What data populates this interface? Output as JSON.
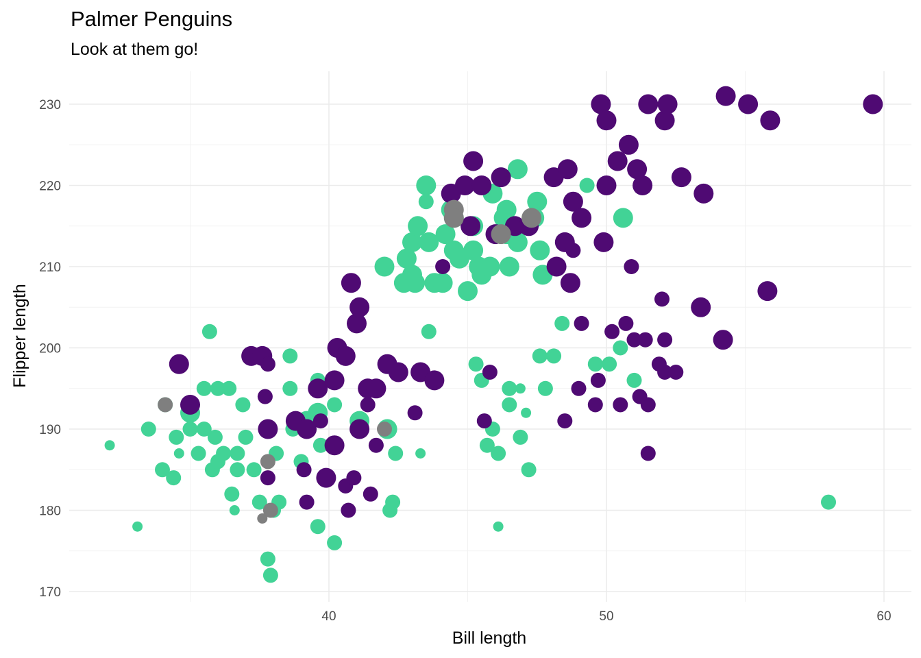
{
  "chart_data": {
    "type": "scatter",
    "title": "Palmer Penguins",
    "subtitle": "Look at them go!",
    "xlabel": "Bill length",
    "ylabel": "Flipper length",
    "xlim": [
      31.3,
      61.0
    ],
    "ylim": [
      169.5,
      233.5
    ],
    "x_ticks": [
      40,
      50,
      60
    ],
    "y_ticks": [
      170,
      180,
      190,
      200,
      210,
      220,
      230
    ],
    "grid": true,
    "legend": "none",
    "colors": {
      "purple": "#4f0a73",
      "green": "#42d396",
      "gray": "#7f7f7f"
    },
    "points": [
      [
        32.1,
        188,
        "g",
        1
      ],
      [
        33.1,
        178,
        "g",
        1
      ],
      [
        33.5,
        190,
        "g",
        2
      ],
      [
        34.1,
        193,
        "g",
        2
      ],
      [
        34.0,
        185,
        "g",
        2
      ],
      [
        34.4,
        184,
        "g",
        2
      ],
      [
        34.5,
        189,
        "g",
        2
      ],
      [
        34.6,
        187,
        "g",
        1
      ],
      [
        34.6,
        198,
        "p",
        3
      ],
      [
        35.0,
        193,
        "p",
        3
      ],
      [
        35.0,
        192,
        "g",
        3
      ],
      [
        35.0,
        190,
        "g",
        2
      ],
      [
        35.3,
        187,
        "g",
        2
      ],
      [
        35.5,
        195,
        "g",
        2
      ],
      [
        35.5,
        190,
        "g",
        2
      ],
      [
        35.7,
        202,
        "g",
        2
      ],
      [
        35.8,
        185,
        "g",
        2
      ],
      [
        35.9,
        189,
        "g",
        2
      ],
      [
        36.0,
        186,
        "g",
        2
      ],
      [
        36.0,
        195,
        "g",
        2
      ],
      [
        36.2,
        187,
        "g",
        2
      ],
      [
        36.4,
        195,
        "g",
        2
      ],
      [
        36.5,
        182,
        "g",
        2
      ],
      [
        36.6,
        180,
        "g",
        1
      ],
      [
        36.7,
        185,
        "g",
        2
      ],
      [
        36.7,
        187,
        "g",
        2
      ],
      [
        36.9,
        193,
        "g",
        2
      ],
      [
        37.0,
        189,
        "g",
        2
      ],
      [
        37.2,
        199,
        "p",
        3
      ],
      [
        37.3,
        185,
        "g",
        2
      ],
      [
        37.5,
        181,
        "g",
        2
      ],
      [
        37.6,
        199,
        "p",
        3
      ],
      [
        37.7,
        194,
        "p",
        2
      ],
      [
        37.8,
        198,
        "p",
        2
      ],
      [
        37.8,
        174,
        "g",
        2
      ],
      [
        37.9,
        172,
        "g",
        2
      ],
      [
        37.8,
        190,
        "p",
        3
      ],
      [
        37.8,
        184,
        "p",
        2
      ],
      [
        38.0,
        180,
        "g",
        2
      ],
      [
        38.1,
        187,
        "g",
        2
      ],
      [
        38.2,
        181,
        "g",
        2
      ],
      [
        38.6,
        199,
        "g",
        2
      ],
      [
        38.6,
        195,
        "g",
        2
      ],
      [
        38.7,
        190,
        "g",
        2
      ],
      [
        38.8,
        191,
        "p",
        3
      ],
      [
        39.0,
        186,
        "g",
        2
      ],
      [
        39.1,
        185,
        "p",
        2
      ],
      [
        39.2,
        181,
        "p",
        2
      ],
      [
        39.2,
        191,
        "g",
        3
      ],
      [
        39.2,
        190,
        "p",
        3
      ],
      [
        39.6,
        192,
        "g",
        3
      ],
      [
        39.6,
        196,
        "g",
        2
      ],
      [
        39.6,
        195,
        "p",
        3
      ],
      [
        39.7,
        188,
        "g",
        2
      ],
      [
        39.7,
        191,
        "p",
        2
      ],
      [
        39.6,
        178,
        "g",
        2
      ],
      [
        39.9,
        184,
        "p",
        3
      ],
      [
        40.2,
        188,
        "p",
        3
      ],
      [
        40.2,
        193,
        "g",
        2
      ],
      [
        40.2,
        176,
        "g",
        2
      ],
      [
        40.2,
        196,
        "p",
        3
      ],
      [
        40.3,
        200,
        "p",
        3
      ],
      [
        40.6,
        183,
        "p",
        2
      ],
      [
        40.6,
        199,
        "p",
        3
      ],
      [
        40.7,
        180,
        "p",
        2
      ],
      [
        40.8,
        208,
        "p",
        3
      ],
      [
        40.9,
        184,
        "p",
        2
      ],
      [
        41.0,
        203,
        "p",
        3
      ],
      [
        41.1,
        205,
        "p",
        3
      ],
      [
        41.1,
        191,
        "g",
        3
      ],
      [
        41.1,
        190,
        "p",
        3
      ],
      [
        41.4,
        195,
        "p",
        3
      ],
      [
        41.4,
        193,
        "p",
        2
      ],
      [
        41.5,
        182,
        "p",
        2
      ],
      [
        41.7,
        188,
        "p",
        2
      ],
      [
        41.7,
        195,
        "p",
        3
      ],
      [
        42.0,
        210,
        "g",
        3
      ],
      [
        42.1,
        198,
        "p",
        3
      ],
      [
        42.2,
        180,
        "g",
        2
      ],
      [
        42.1,
        190,
        "g",
        3
      ],
      [
        42.3,
        181,
        "g",
        2
      ],
      [
        42.4,
        187,
        "g",
        2
      ],
      [
        42.5,
        197,
        "p",
        3
      ],
      [
        42.7,
        208,
        "g",
        3
      ],
      [
        42.8,
        211,
        "g",
        3
      ],
      [
        43.0,
        209,
        "g",
        3
      ],
      [
        43.0,
        213,
        "g",
        3
      ],
      [
        43.1,
        208,
        "g",
        3
      ],
      [
        43.1,
        192,
        "p",
        2
      ],
      [
        43.2,
        215,
        "g",
        3
      ],
      [
        43.3,
        197,
        "p",
        3
      ],
      [
        43.3,
        187,
        "g",
        1
      ],
      [
        43.5,
        218,
        "g",
        2
      ],
      [
        43.5,
        220,
        "g",
        3
      ],
      [
        43.6,
        213,
        "g",
        3
      ],
      [
        43.6,
        202,
        "g",
        2
      ],
      [
        43.8,
        196,
        "p",
        3
      ],
      [
        43.8,
        208,
        "g",
        3
      ],
      [
        44.1,
        210,
        "p",
        2
      ],
      [
        44.1,
        208,
        "g",
        3
      ],
      [
        44.2,
        214,
        "g",
        3
      ],
      [
        44.4,
        219,
        "p",
        3
      ],
      [
        44.4,
        217,
        "g",
        3
      ],
      [
        44.5,
        216,
        "g",
        3
      ],
      [
        44.5,
        212,
        "g",
        3
      ],
      [
        44.7,
        211,
        "g",
        3
      ],
      [
        44.9,
        220,
        "p",
        3
      ],
      [
        45.0,
        207,
        "g",
        3
      ],
      [
        45.1,
        215,
        "p",
        3
      ],
      [
        45.2,
        215,
        "g",
        3
      ],
      [
        45.2,
        212,
        "g",
        3
      ],
      [
        45.2,
        223,
        "p",
        3
      ],
      [
        45.3,
        198,
        "g",
        2
      ],
      [
        45.4,
        210,
        "g",
        3
      ],
      [
        45.5,
        209,
        "g",
        3
      ],
      [
        45.5,
        220,
        "p",
        3
      ],
      [
        45.5,
        196,
        "g",
        2
      ],
      [
        45.6,
        191,
        "p",
        2
      ],
      [
        45.8,
        210,
        "g",
        3
      ],
      [
        45.8,
        197,
        "p",
        2
      ],
      [
        45.7,
        188,
        "g",
        2
      ],
      [
        45.9,
        190,
        "g",
        2
      ],
      [
        45.9,
        219,
        "g",
        3
      ],
      [
        46.0,
        214,
        "p",
        3
      ],
      [
        46.1,
        187,
        "g",
        2
      ],
      [
        46.1,
        178,
        "g",
        1
      ],
      [
        46.2,
        221,
        "p",
        3
      ],
      [
        46.3,
        216,
        "g",
        3
      ],
      [
        46.4,
        214,
        "g",
        3
      ],
      [
        46.4,
        217,
        "g",
        3
      ],
      [
        46.5,
        210,
        "g",
        3
      ],
      [
        46.5,
        195,
        "g",
        2
      ],
      [
        46.5,
        193,
        "g",
        2
      ],
      [
        46.7,
        215,
        "p",
        3
      ],
      [
        46.8,
        222,
        "g",
        3
      ],
      [
        46.8,
        213,
        "g",
        3
      ],
      [
        46.9,
        189,
        "g",
        2
      ],
      [
        46.9,
        195,
        "g",
        1
      ],
      [
        47.1,
        192,
        "g",
        1
      ],
      [
        47.2,
        185,
        "g",
        2
      ],
      [
        47.2,
        215,
        "p",
        3
      ],
      [
        47.4,
        216,
        "g",
        3
      ],
      [
        47.5,
        218,
        "g",
        3
      ],
      [
        47.6,
        212,
        "g",
        3
      ],
      [
        47.7,
        209,
        "g",
        3
      ],
      [
        47.8,
        195,
        "g",
        2
      ],
      [
        47.6,
        199,
        "g",
        2
      ],
      [
        48.1,
        199,
        "g",
        2
      ],
      [
        48.1,
        221,
        "p",
        3
      ],
      [
        48.2,
        210,
        "p",
        3
      ],
      [
        48.4,
        203,
        "g",
        2
      ],
      [
        48.5,
        191,
        "p",
        2
      ],
      [
        48.5,
        213,
        "p",
        3
      ],
      [
        48.6,
        222,
        "p",
        3
      ],
      [
        48.7,
        208,
        "p",
        3
      ],
      [
        48.8,
        212,
        "p",
        2
      ],
      [
        48.8,
        218,
        "p",
        3
      ],
      [
        49.0,
        195,
        "p",
        2
      ],
      [
        49.1,
        216,
        "p",
        3
      ],
      [
        49.1,
        203,
        "p",
        2
      ],
      [
        49.3,
        220,
        "g",
        2
      ],
      [
        49.6,
        193,
        "p",
        2
      ],
      [
        49.6,
        198,
        "g",
        2
      ],
      [
        49.7,
        196,
        "p",
        2
      ],
      [
        49.8,
        230,
        "p",
        3
      ],
      [
        49.9,
        213,
        "p",
        3
      ],
      [
        50.0,
        220,
        "p",
        3
      ],
      [
        50.0,
        228,
        "p",
        3
      ],
      [
        50.1,
        198,
        "g",
        2
      ],
      [
        50.2,
        202,
        "p",
        2
      ],
      [
        50.4,
        223,
        "p",
        3
      ],
      [
        50.5,
        200,
        "g",
        2
      ],
      [
        50.5,
        193,
        "p",
        2
      ],
      [
        50.6,
        216,
        "g",
        3
      ],
      [
        50.7,
        203,
        "p",
        2
      ],
      [
        50.8,
        225,
        "p",
        3
      ],
      [
        50.9,
        210,
        "p",
        2
      ],
      [
        51.0,
        201,
        "p",
        2
      ],
      [
        51.0,
        196,
        "g",
        2
      ],
      [
        51.1,
        222,
        "p",
        3
      ],
      [
        51.2,
        194,
        "p",
        2
      ],
      [
        51.3,
        220,
        "p",
        3
      ],
      [
        51.4,
        201,
        "p",
        2
      ],
      [
        51.5,
        187,
        "p",
        2
      ],
      [
        51.5,
        193,
        "p",
        2
      ],
      [
        51.5,
        230,
        "p",
        3
      ],
      [
        51.9,
        198,
        "p",
        2
      ],
      [
        52.0,
        206,
        "p",
        2
      ],
      [
        52.1,
        197,
        "p",
        2
      ],
      [
        52.1,
        201,
        "p",
        2
      ],
      [
        52.1,
        228,
        "p",
        3
      ],
      [
        52.2,
        230,
        "p",
        3
      ],
      [
        52.5,
        197,
        "p",
        2
      ],
      [
        52.7,
        221,
        "p",
        3
      ],
      [
        53.4,
        205,
        "p",
        3
      ],
      [
        53.5,
        219,
        "p",
        3
      ],
      [
        54.2,
        201,
        "p",
        3
      ],
      [
        54.3,
        231,
        "p",
        3
      ],
      [
        55.1,
        230,
        "p",
        3
      ],
      [
        55.8,
        207,
        "p",
        3
      ],
      [
        55.9,
        228,
        "p",
        3
      ],
      [
        58.0,
        181,
        "g",
        2
      ],
      [
        59.6,
        230,
        "p",
        3
      ],
      [
        34.1,
        193,
        "x",
        2
      ],
      [
        37.6,
        179,
        "x",
        1
      ],
      [
        37.8,
        186,
        "x",
        2
      ],
      [
        37.9,
        180,
        "x",
        2
      ],
      [
        42.0,
        190,
        "x",
        2
      ],
      [
        44.5,
        217,
        "x",
        3
      ],
      [
        44.5,
        216,
        "x",
        3
      ],
      [
        46.2,
        214,
        "x",
        3
      ],
      [
        47.3,
        216,
        "x",
        3
      ]
    ]
  }
}
